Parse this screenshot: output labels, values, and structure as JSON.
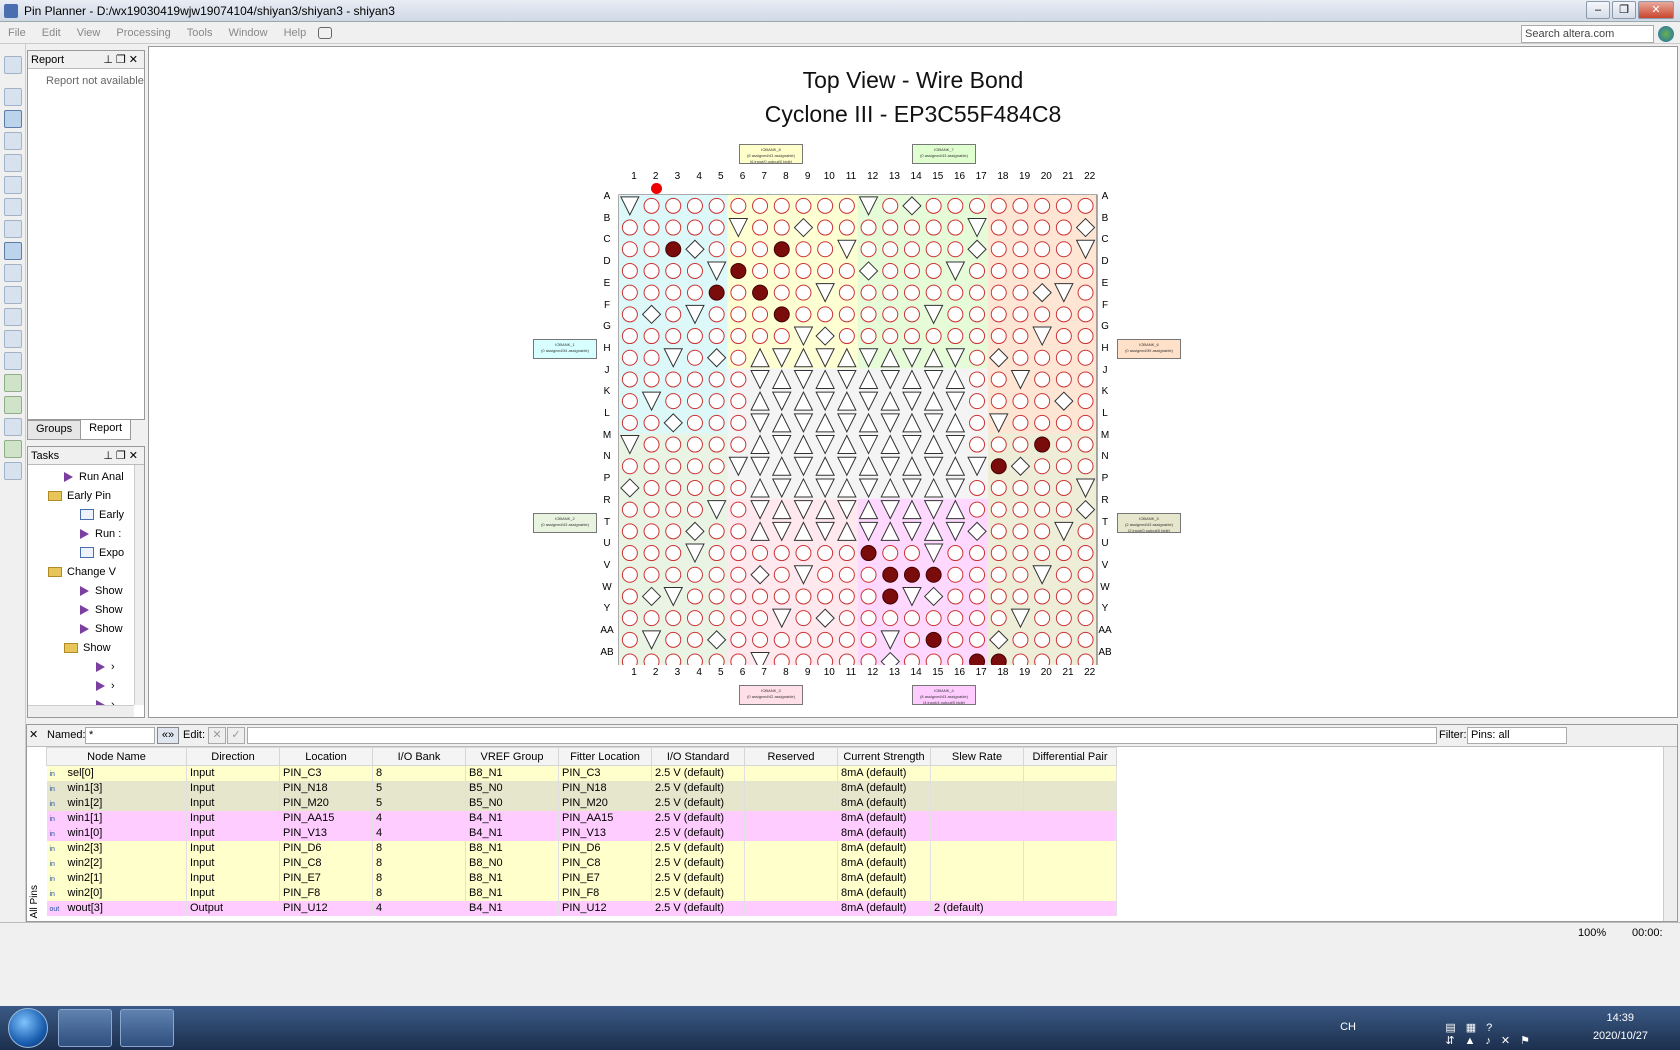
{
  "window": {
    "title": "Pin Planner - D:/wx19030419wjw19074104/shiyan3/shiyan3 - shiyan3"
  },
  "menu": [
    "File",
    "Edit",
    "View",
    "Processing",
    "Tools",
    "Window",
    "Help"
  ],
  "search": {
    "placeholder": "Search altera.com"
  },
  "report_panel": {
    "title": "Report",
    "message": "Report not available"
  },
  "panel_tabs": [
    "Groups",
    "Report"
  ],
  "tasks_panel": {
    "title": "Tasks",
    "items": [
      {
        "label": "Run Anal",
        "type": "play",
        "indent": 2
      },
      {
        "label": "Early Pin",
        "type": "folder",
        "indent": 1
      },
      {
        "label": "Early",
        "type": "doc",
        "indent": 3
      },
      {
        "label": "Run :",
        "type": "play",
        "indent": 3
      },
      {
        "label": "Expo",
        "type": "doc",
        "indent": 3
      },
      {
        "label": "Change V",
        "type": "folder",
        "indent": 1
      },
      {
        "label": "Show",
        "type": "play",
        "indent": 3
      },
      {
        "label": "Show",
        "type": "play",
        "indent": 3
      },
      {
        "label": "Show",
        "type": "play",
        "indent": 3
      },
      {
        "label": "Show",
        "type": "folder",
        "indent": 2
      },
      {
        "label": "›",
        "type": "play",
        "indent": 4
      },
      {
        "label": "›",
        "type": "play",
        "indent": 4
      },
      {
        "label": "›",
        "type": "play",
        "indent": 4
      }
    ]
  },
  "package": {
    "title_line1": "Top View - Wire Bond",
    "title_line2": "Cyclone III - EP3C55F484C8",
    "columns": [
      "1",
      "2",
      "3",
      "4",
      "5",
      "6",
      "7",
      "8",
      "9",
      "10",
      "11",
      "12",
      "13",
      "14",
      "15",
      "16",
      "17",
      "18",
      "19",
      "20",
      "21",
      "22"
    ],
    "rows": [
      "A",
      "B",
      "C",
      "D",
      "E",
      "F",
      "G",
      "H",
      "J",
      "K",
      "L",
      "M",
      "N",
      "P",
      "R",
      "T",
      "U",
      "V",
      "W",
      "Y",
      "AA",
      "AB"
    ],
    "banks": [
      {
        "label": "IOBANK_8",
        "detail": "(6 assigned/43 assignable)",
        "detail2": "(6 input/0 output/0 bidir)",
        "color": "#ffffcc"
      },
      {
        "label": "IOBANK_7",
        "detail": "(0 assigned/43 assignable)",
        "detail2": "",
        "color": "#e0ffd0"
      },
      {
        "label": "IOBANK_1",
        "detail": "(0 assigned/34 assignable)",
        "detail2": "",
        "color": "#d8ffff"
      },
      {
        "label": "IOBANK_6",
        "detail": "(0 assigned/39 assignable)",
        "detail2": "",
        "color": "#ffe0c8"
      },
      {
        "label": "IOBANK_2",
        "detail": "(0 assigned/43 assignable)",
        "detail2": "",
        "color": "#e8f4e0"
      },
      {
        "label": "IOBANK_5",
        "detail": "(2 assigned/43 assignable)",
        "detail2": "(2 input/0 output/0 bidir)",
        "color": "#e6e6cc"
      },
      {
        "label": "IOBANK_3",
        "detail": "(0 assigned/42 assignable)",
        "detail2": "",
        "color": "#ffe0e8"
      },
      {
        "label": "IOBANK_4",
        "detail": "(8 assigned/43 assignable)",
        "detail2": "(4 input/4 output/0 bidir)",
        "color": "#ffccff"
      }
    ]
  },
  "pin_table": {
    "named_label": "Named:",
    "named_value": "*",
    "edit_label": "Edit:",
    "filter_label": "Filter:",
    "filter_value": "Pins: all",
    "side_label": "All Pins",
    "headers": [
      "Node Name",
      "Direction",
      "Location",
      "I/O Bank",
      "VREF Group",
      "Fitter Location",
      "I/O Standard",
      "Reserved",
      "Current Strength",
      "Slew Rate",
      "Differential Pair"
    ],
    "rows": [
      {
        "dir_icon": "in",
        "name": "sel[0]",
        "direction": "Input",
        "location": "PIN_C3",
        "bank": "8",
        "vref": "B8_N1",
        "fitter": "PIN_C3",
        "standard": "2.5 V (default)",
        "reserved": "",
        "current": "8mA (default)",
        "slew": "",
        "diff": "",
        "color": "b8"
      },
      {
        "dir_icon": "in",
        "name": "win1[3]",
        "direction": "Input",
        "location": "PIN_N18",
        "bank": "5",
        "vref": "B5_N0",
        "fitter": "PIN_N18",
        "standard": "2.5 V (default)",
        "reserved": "",
        "current": "8mA (default)",
        "slew": "",
        "diff": "",
        "color": "b5"
      },
      {
        "dir_icon": "in",
        "name": "win1[2]",
        "direction": "Input",
        "location": "PIN_M20",
        "bank": "5",
        "vref": "B5_N0",
        "fitter": "PIN_M20",
        "standard": "2.5 V (default)",
        "reserved": "",
        "current": "8mA (default)",
        "slew": "",
        "diff": "",
        "color": "b5"
      },
      {
        "dir_icon": "in",
        "name": "win1[1]",
        "direction": "Input",
        "location": "PIN_AA15",
        "bank": "4",
        "vref": "B4_N1",
        "fitter": "PIN_AA15",
        "standard": "2.5 V (default)",
        "reserved": "",
        "current": "8mA (default)",
        "slew": "",
        "diff": "",
        "color": "b4"
      },
      {
        "dir_icon": "in",
        "name": "win1[0]",
        "direction": "Input",
        "location": "PIN_V13",
        "bank": "4",
        "vref": "B4_N1",
        "fitter": "PIN_V13",
        "standard": "2.5 V (default)",
        "reserved": "",
        "current": "8mA (default)",
        "slew": "",
        "diff": "",
        "color": "b4"
      },
      {
        "dir_icon": "in",
        "name": "win2[3]",
        "direction": "Input",
        "location": "PIN_D6",
        "bank": "8",
        "vref": "B8_N1",
        "fitter": "PIN_D6",
        "standard": "2.5 V (default)",
        "reserved": "",
        "current": "8mA (default)",
        "slew": "",
        "diff": "",
        "color": "b8"
      },
      {
        "dir_icon": "in",
        "name": "win2[2]",
        "direction": "Input",
        "location": "PIN_C8",
        "bank": "8",
        "vref": "B8_N0",
        "fitter": "PIN_C8",
        "standard": "2.5 V (default)",
        "reserved": "",
        "current": "8mA (default)",
        "slew": "",
        "diff": "",
        "color": "b8"
      },
      {
        "dir_icon": "in",
        "name": "win2[1]",
        "direction": "Input",
        "location": "PIN_E7",
        "bank": "8",
        "vref": "B8_N1",
        "fitter": "PIN_E7",
        "standard": "2.5 V (default)",
        "reserved": "",
        "current": "8mA (default)",
        "slew": "",
        "diff": "",
        "color": "b8"
      },
      {
        "dir_icon": "in",
        "name": "win2[0]",
        "direction": "Input",
        "location": "PIN_F8",
        "bank": "8",
        "vref": "B8_N1",
        "fitter": "PIN_F8",
        "standard": "2.5 V (default)",
        "reserved": "",
        "current": "8mA (default)",
        "slew": "",
        "diff": "",
        "color": "b8"
      },
      {
        "dir_icon": "out",
        "name": "wout[3]",
        "direction": "Output",
        "location": "PIN_U12",
        "bank": "4",
        "vref": "B4_N1",
        "fitter": "PIN_U12",
        "standard": "2.5 V (default)",
        "reserved": "",
        "current": "8mA (default)",
        "slew": "2 (default)",
        "diff": "",
        "color": "b4"
      }
    ]
  },
  "status": {
    "zoom": "100%",
    "time": "00:00:"
  },
  "taskbar": {
    "lang": "CH",
    "clock_time": "14:39",
    "clock_date": "2020/10/27"
  }
}
